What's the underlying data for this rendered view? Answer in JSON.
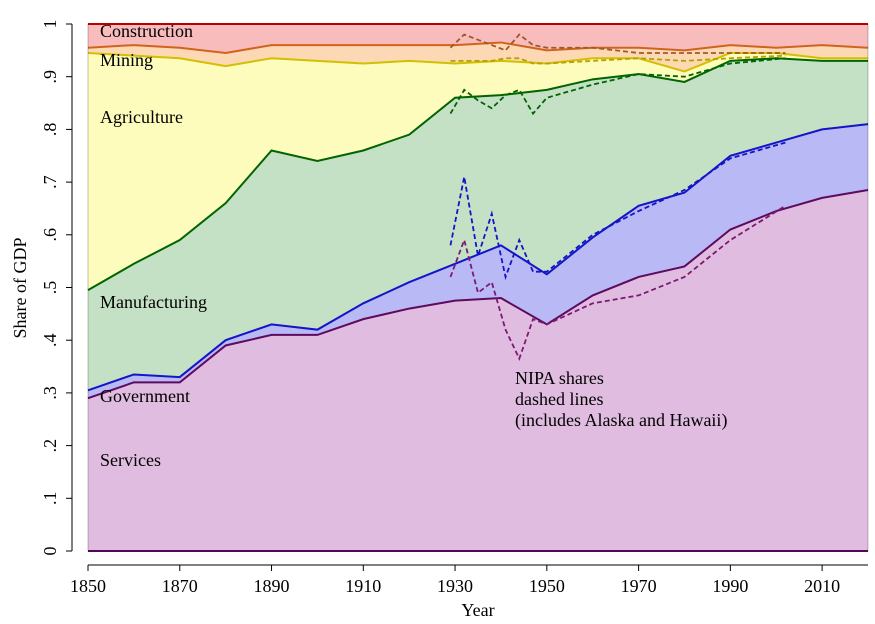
{
  "chart_data": {
    "type": "area",
    "stacked": true,
    "y_label": "Share of GDP",
    "x_label": "Year",
    "xlim": [
      1850,
      2020
    ],
    "ylim": [
      0,
      1
    ],
    "xticks": [
      1850,
      1870,
      1890,
      1910,
      1930,
      1950,
      1970,
      1990,
      2010
    ],
    "yticks": [
      0,
      {
        "value": 0.1,
        "label": ".1"
      },
      {
        "value": 0.2,
        "label": ".2"
      },
      {
        "value": 0.3,
        "label": ".3"
      },
      {
        "value": 0.4,
        "label": ".4"
      },
      {
        "value": 0.5,
        "label": ".5"
      },
      {
        "value": 0.6,
        "label": ".6"
      },
      {
        "value": 0.7,
        "label": ".7"
      },
      {
        "value": 0.8,
        "label": ".8"
      },
      {
        "value": 0.9,
        "label": ".9"
      },
      1
    ],
    "x": [
      1850,
      1860,
      1870,
      1880,
      1890,
      1900,
      1910,
      1920,
      1930,
      1940,
      1950,
      1960,
      1970,
      1980,
      1990,
      2000,
      2010,
      2020
    ],
    "series": [
      {
        "name": "Services",
        "color": "#5e0a5e",
        "fill": "#e0bde0",
        "values": [
          0.29,
          0.32,
          0.32,
          0.39,
          0.41,
          0.41,
          0.44,
          0.46,
          0.475,
          0.48,
          0.43,
          0.485,
          0.52,
          0.54,
          0.61,
          0.645,
          0.67,
          0.685
        ]
      },
      {
        "name": "Government",
        "color": "#1414c8",
        "fill": "#b9b9f5",
        "values": [
          0.015,
          0.015,
          0.01,
          0.01,
          0.02,
          0.01,
          0.03,
          0.05,
          0.07,
          0.1,
          0.095,
          0.11,
          0.135,
          0.14,
          0.14,
          0.13,
          0.13,
          0.125
        ]
      },
      {
        "name": "Manufacturing",
        "color": "#006400",
        "fill": "#c5e1c5",
        "values": [
          0.19,
          0.21,
          0.26,
          0.26,
          0.33,
          0.32,
          0.29,
          0.28,
          0.315,
          0.285,
          0.35,
          0.3,
          0.25,
          0.21,
          0.18,
          0.16,
          0.13,
          0.12
        ]
      },
      {
        "name": "Agriculture",
        "color": "#d2c000",
        "fill": "#fdfcbd",
        "values": [
          0.45,
          0.395,
          0.345,
          0.26,
          0.175,
          0.19,
          0.165,
          0.14,
          0.065,
          0.065,
          0.05,
          0.04,
          0.03,
          0.02,
          0.015,
          0.01,
          0.005,
          0.005
        ]
      },
      {
        "name": "Mining",
        "color": "#d0641e",
        "fill": "#fcd9b4",
        "values": [
          0.01,
          0.02,
          0.02,
          0.025,
          0.025,
          0.03,
          0.035,
          0.03,
          0.035,
          0.035,
          0.025,
          0.02,
          0.02,
          0.04,
          0.015,
          0.01,
          0.025,
          0.02
        ]
      },
      {
        "name": "Construction",
        "color": "#d20000",
        "fill": "#f9bcbc",
        "values": [
          0.045,
          0.04,
          0.045,
          0.055,
          0.04,
          0.04,
          0.04,
          0.04,
          0.04,
          0.035,
          0.05,
          0.045,
          0.045,
          0.05,
          0.04,
          0.045,
          0.04,
          0.045
        ]
      }
    ],
    "nipa": {
      "annotation": [
        "NIPA shares",
        "dashed lines",
        "(includes Alaska and Hawaii)"
      ],
      "x": [
        1929,
        1932,
        1935,
        1938,
        1941,
        1944,
        1947,
        1950,
        1960,
        1970,
        1980,
        1990,
        2002
      ],
      "series": [
        {
          "color": "#7a1a70",
          "values": [
            0.52,
            0.59,
            0.49,
            0.51,
            0.42,
            0.365,
            0.44,
            0.43,
            0.47,
            0.485,
            0.52,
            0.59,
            0.655
          ]
        },
        {
          "color": "#1414c8",
          "values": [
            0.06,
            0.12,
            0.07,
            0.13,
            0.1,
            0.225,
            0.09,
            0.1,
            0.13,
            0.16,
            0.165,
            0.155,
            0.12
          ]
        },
        {
          "color": "#006400",
          "values": [
            0.25,
            0.165,
            0.295,
            0.2,
            0.345,
            0.285,
            0.3,
            0.33,
            0.285,
            0.26,
            0.215,
            0.18,
            0.16
          ]
        },
        {
          "color": "#b4a000",
          "values": [
            0.1,
            0.055,
            0.075,
            0.09,
            0.07,
            0.06,
            0.095,
            0.065,
            0.045,
            0.03,
            0.03,
            0.01,
            0.005
          ]
        },
        {
          "color": "#9c5a28",
          "values": [
            0.025,
            0.05,
            0.04,
            0.03,
            0.015,
            0.045,
            0.035,
            0.03,
            0.025,
            0.01,
            0.015,
            0.01,
            0.005
          ]
        }
      ]
    }
  }
}
